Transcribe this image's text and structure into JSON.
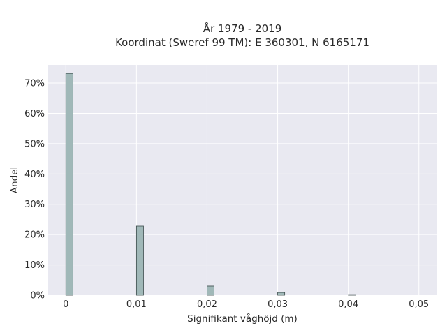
{
  "chart_data": {
    "type": "bar",
    "title_line1": "År 1979 - 2019",
    "title_line2": "Koordinat (Sweref 99 TM): E 360301, N 6165171",
    "xlabel": "Signifikant våghöjd (m)",
    "ylabel": "Andel",
    "xlim": [
      -0.0025,
      0.0525
    ],
    "ylim": [
      0,
      0.76
    ],
    "x_ticks": [
      0,
      0.01,
      0.02,
      0.03,
      0.04,
      0.05
    ],
    "x_tick_labels": [
      "0",
      "0,01",
      "0,02",
      "0,03",
      "0,04",
      "0,05"
    ],
    "y_ticks": [
      0,
      0.1,
      0.2,
      0.3,
      0.4,
      0.5,
      0.6,
      0.7
    ],
    "y_tick_labels": [
      "0%",
      "10%",
      "20%",
      "30%",
      "40%",
      "50%",
      "60%",
      "70%"
    ],
    "bin_width": 0.001,
    "bars": [
      {
        "x": 0.0,
        "value": 0.732
      },
      {
        "x": 0.01,
        "value": 0.228
      },
      {
        "x": 0.02,
        "value": 0.03
      },
      {
        "x": 0.03,
        "value": 0.009
      },
      {
        "x": 0.04,
        "value": 0.002
      }
    ],
    "grid": true,
    "colors": {
      "plot_background": "#e9e9f1",
      "grid": "#ffffff",
      "bar_fill": "#a0b8b8",
      "bar_edge": "#3a4a4a"
    }
  }
}
